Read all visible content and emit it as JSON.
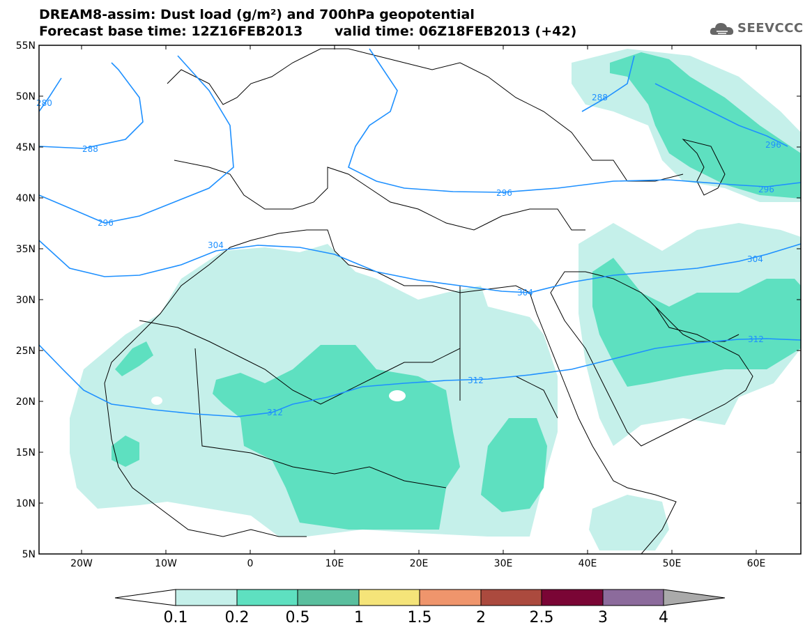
{
  "header": {
    "title": "DREAM8-assim: Dust load (g/m²) and 700hPa geopotential",
    "base_time": "Forecast base time: 12Z16FEB2013",
    "valid_time": "valid time: 06Z18FEB2013 (+42)"
  },
  "logo": {
    "text": "SEEVCCC",
    "icon": "cloud-logo-icon"
  },
  "map": {
    "lat_labels": [
      "55N",
      "50N",
      "45N",
      "40N",
      "35N",
      "30N",
      "25N",
      "20N",
      "15N",
      "10N",
      "5N"
    ],
    "lon_labels": [
      "20W",
      "10W",
      "0",
      "10E",
      "20E",
      "30E",
      "40E",
      "50E",
      "60E"
    ],
    "contour_color": "#1e90ff",
    "contour_labels": [
      "280",
      "288",
      "288",
      "296",
      "296",
      "296",
      "296",
      "304",
      "304",
      "304",
      "312",
      "312",
      "312"
    ]
  },
  "colorbar": {
    "ticks": [
      "0.1",
      "0.2",
      "0.5",
      "1",
      "1.5",
      "2",
      "2.5",
      "3",
      "4"
    ],
    "colors": [
      "#c5f0ea",
      "#5ee0c0",
      "#5abf9e",
      "#f5e479",
      "#ef956c",
      "#ab4a3e",
      "#7a0535",
      "#8c6b9c",
      "#aaaaaa"
    ]
  }
}
